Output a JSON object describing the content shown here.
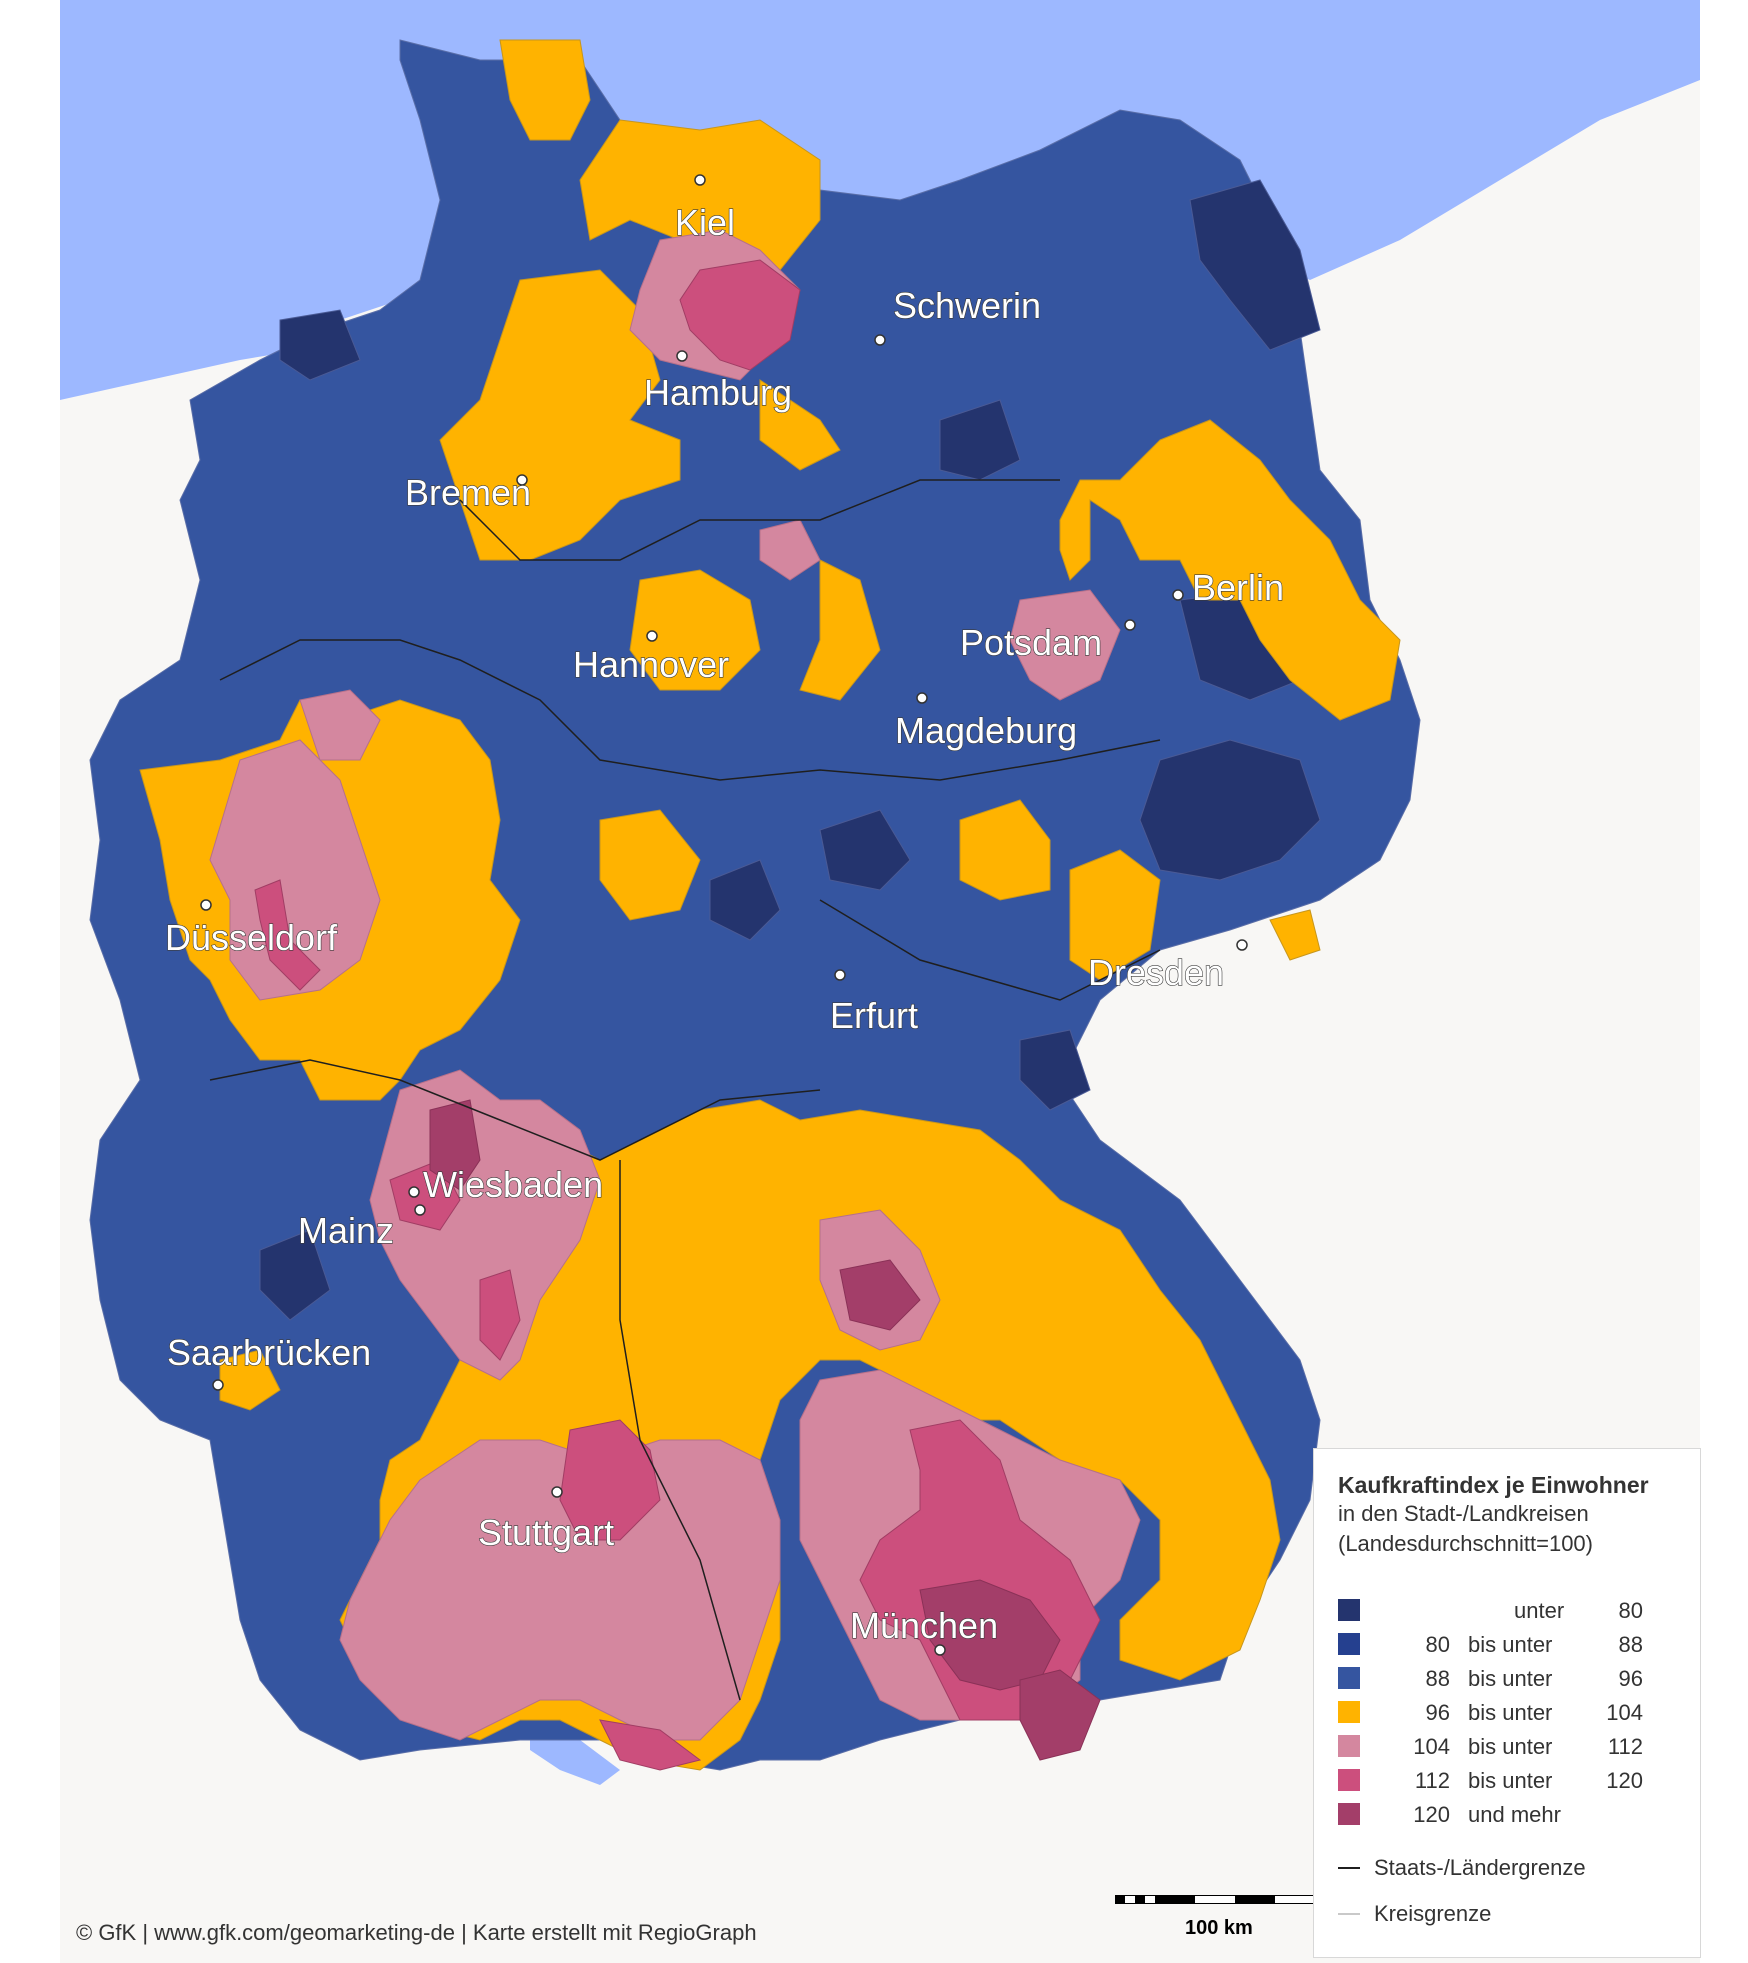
{
  "map": {
    "colors": {
      "sea": "#9db8ff",
      "land_outside": "#f8f7f5",
      "c1": "#24346e",
      "c2": "#25408f",
      "c3": "#3555a0",
      "c4": "#ffb300",
      "c5": "#d4879f",
      "c6": "#cc4f7d",
      "c7": "#a33e69"
    },
    "cities": [
      {
        "name": "Kiel"
      },
      {
        "name": "Schwerin"
      },
      {
        "name": "Hamburg"
      },
      {
        "name": "Bremen"
      },
      {
        "name": "Berlin"
      },
      {
        "name": "Potsdam"
      },
      {
        "name": "Hannover"
      },
      {
        "name": "Magdeburg"
      },
      {
        "name": "Düsseldorf"
      },
      {
        "name": "Dresden"
      },
      {
        "name": "Erfurt"
      },
      {
        "name": "Wiesbaden"
      },
      {
        "name": "Mainz"
      },
      {
        "name": "Saarbrücken"
      },
      {
        "name": "Stuttgart"
      },
      {
        "name": "München"
      }
    ]
  },
  "legend": {
    "title": "Kaufkraftindex je Einwohner",
    "subtitle1": "in den Stadt-/Landkreisen",
    "subtitle2": "(Landesdurchschnitt=100)",
    "classes": [
      {
        "from": "",
        "mid": "unter",
        "to": "80",
        "color": "#24346e"
      },
      {
        "from": "80",
        "mid": "bis unter",
        "to": "88",
        "color": "#25408f"
      },
      {
        "from": "88",
        "mid": "bis unter",
        "to": "96",
        "color": "#3555a0"
      },
      {
        "from": "96",
        "mid": "bis unter",
        "to": "104",
        "color": "#ffb300"
      },
      {
        "from": "104",
        "mid": "bis unter",
        "to": "112",
        "color": "#d4879f"
      },
      {
        "from": "112",
        "mid": "bis unter",
        "to": "120",
        "color": "#cc4f7d"
      },
      {
        "from": "120",
        "mid": "und mehr",
        "to": "",
        "color": "#a33e69"
      }
    ],
    "lines": [
      {
        "label": "Staats-/Ländergrenze",
        "color": "#1f1f1f"
      },
      {
        "label": "Kreisgrenze",
        "color": "#c9c9c9"
      }
    ]
  },
  "scale": {
    "label": "100 km"
  },
  "copyright": "© GfK | www.gfk.com/geomarketing-de | Karte erstellt mit RegioGraph"
}
